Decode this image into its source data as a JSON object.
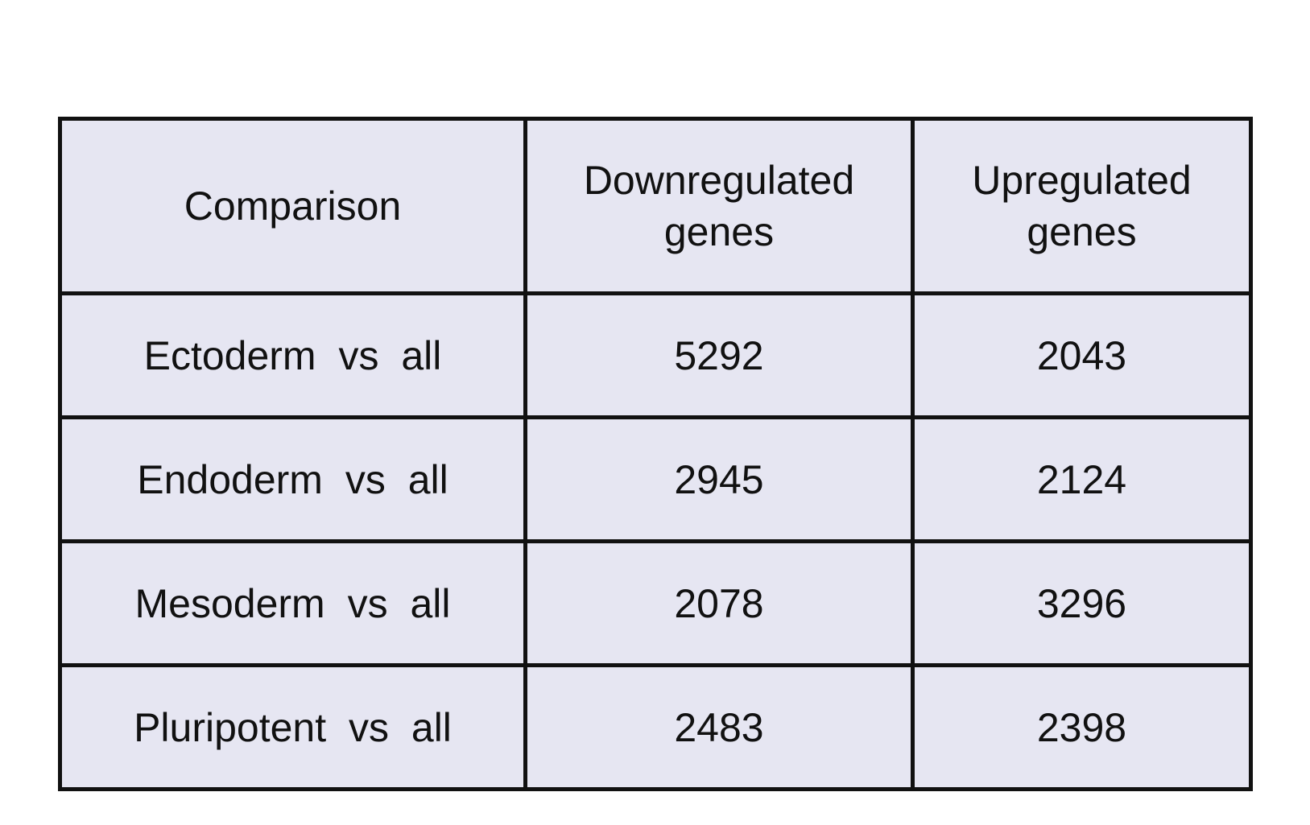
{
  "table": {
    "headers": [
      "Comparison",
      "Downregulated\ngenes",
      "Upregulated\ngenes"
    ],
    "rows": [
      [
        "Ectoderm vs all",
        "5292",
        "2043"
      ],
      [
        "Endoderm vs all",
        "2945",
        "2124"
      ],
      [
        "Mesoderm vs all",
        "2078",
        "3296"
      ],
      [
        "Pluripotent vs all",
        "2483",
        "2398"
      ]
    ]
  },
  "colors": {
    "cell_background": "#e6e6f2",
    "border": "#111111",
    "text": "#111111"
  }
}
